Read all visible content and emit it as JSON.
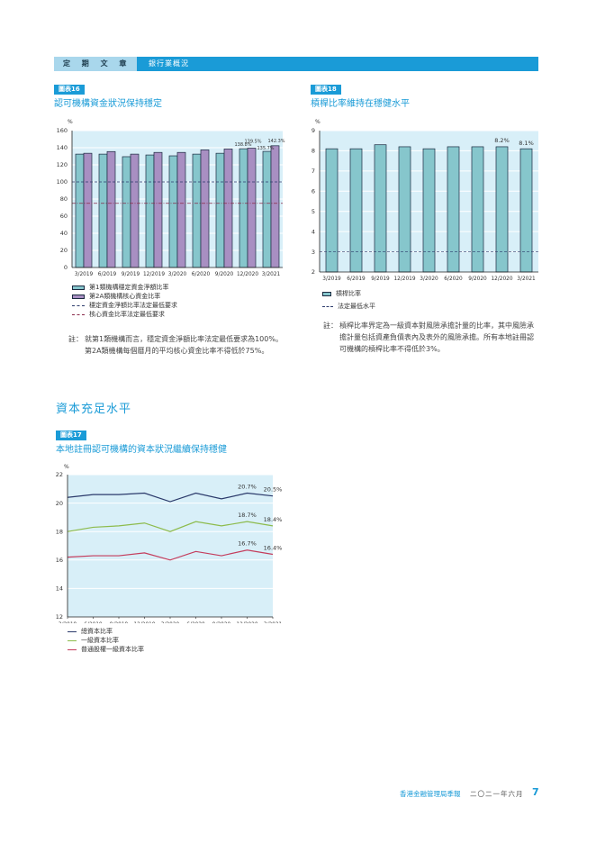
{
  "header": {
    "section": "定 期 文 章",
    "chapter": "銀行業概況"
  },
  "chart16": {
    "tag": "圖表16",
    "title": "認可機構資金狀況保持穩定",
    "unit": "%",
    "legend": [
      "第1類機構穩定資金淨額比率",
      "第2A類機構核心資金比率",
      "穩定資金淨額比率法定最低要求",
      "核心資金比率法定最低要求"
    ],
    "note_label": "註：",
    "note": "就第1類機構而言，穩定資金淨額比率法定最低要求為100%。第2A類機構每個曆月的平均核心資金比率不得低於75%。"
  },
  "chart18": {
    "tag": "圖表18",
    "title": "槓桿比率維持在穩健水平",
    "unit": "%",
    "legend": [
      "槓桿比率",
      "法定最低水平"
    ],
    "note_label": "註：",
    "note": "槓桿比率界定為一級資本對風險承擔計量的比率，其中風險承擔計量包括資產負債表內及表外的風險承擔。所有本地註冊認可機構的槓桿比率不得低於3%。"
  },
  "section": {
    "title": "資本充足水平"
  },
  "chart17": {
    "tag": "圖表17",
    "title": "本地註冊認可機構的資本狀況繼續保持穩健",
    "unit": "%",
    "legend": [
      "總資本比率",
      "一級資本比率",
      "普通股權一級資本比率"
    ]
  },
  "footer": {
    "publication": "香港金融管理局季報",
    "date": "二〇二一年六月",
    "page": "7"
  },
  "colors": {
    "brand_blue": "#1a9bd7",
    "header_light": "#a9d7ec",
    "plot_bg": "#d8eff8",
    "teal_bar": "#86c6cc",
    "purple_bar": "#a88fc2",
    "total_line": "#2b3a6b",
    "tier1_line": "#8dbb4c",
    "cet1_line": "#c43c5c"
  },
  "chart_data": [
    {
      "id": "chart16",
      "type": "bar",
      "title": "認可機構資金狀況保持穩定",
      "ylabel": "%",
      "ylim": [
        0,
        160
      ],
      "yticks": [
        0,
        20,
        40,
        60,
        80,
        100,
        120,
        140,
        160
      ],
      "categories": [
        "3/2019",
        "6/2019",
        "9/2019",
        "12/2019",
        "3/2020",
        "6/2020",
        "9/2020",
        "12/2020",
        "3/2021"
      ],
      "series": [
        {
          "name": "第1類機構穩定資金淨額比率",
          "values": [
            132.5,
            132.5,
            129.5,
            131.5,
            130.5,
            132.5,
            133.5,
            138.8,
            135.7
          ]
        },
        {
          "name": "第2A類機構核心資金比率",
          "values": [
            133.5,
            135.5,
            132.5,
            134.5,
            134.5,
            137.5,
            138.5,
            139.5,
            142.3
          ]
        }
      ],
      "reference_lines": [
        {
          "name": "穩定資金淨額比率法定最低要求",
          "value": 100,
          "style": "dashed"
        },
        {
          "name": "核心資金比率法定最低要求",
          "value": 75,
          "style": "dash-dot"
        }
      ],
      "annotations": [
        "138.8%",
        "139.5%",
        "135.7%",
        "142.3%"
      ],
      "grid": true,
      "legend_position": "bottom"
    },
    {
      "id": "chart18",
      "type": "bar",
      "title": "槓桿比率維持在穩健水平",
      "ylabel": "%",
      "ylim": [
        2,
        9
      ],
      "yticks": [
        2,
        3,
        4,
        5,
        6,
        7,
        8,
        9
      ],
      "categories": [
        "3/2019",
        "6/2019",
        "9/2019",
        "12/2019",
        "3/2020",
        "6/2020",
        "9/2020",
        "12/2020",
        "3/2021"
      ],
      "series": [
        {
          "name": "槓桿比率",
          "values": [
            8.1,
            8.1,
            8.3,
            8.2,
            8.1,
            8.2,
            8.2,
            8.2,
            8.1
          ]
        }
      ],
      "reference_lines": [
        {
          "name": "法定最低水平",
          "value": 3,
          "style": "dashed"
        }
      ],
      "annotations": [
        "8.2%",
        "8.1%"
      ],
      "grid": true,
      "legend_position": "bottom"
    },
    {
      "id": "chart17",
      "type": "line",
      "title": "本地註冊認可機構的資本狀況繼續保持穩健",
      "ylabel": "%",
      "ylim": [
        12,
        22
      ],
      "yticks": [
        12,
        14,
        16,
        18,
        20,
        22
      ],
      "categories": [
        "3/2019",
        "6/2019",
        "9/2019",
        "12/2019",
        "3/2020",
        "6/2020",
        "9/2020",
        "12/2020",
        "3/2021"
      ],
      "series": [
        {
          "name": "總資本比率",
          "values": [
            20.4,
            20.6,
            20.6,
            20.7,
            20.1,
            20.7,
            20.3,
            20.7,
            20.5
          ]
        },
        {
          "name": "一級資本比率",
          "values": [
            18.0,
            18.3,
            18.4,
            18.6,
            18.0,
            18.7,
            18.4,
            18.7,
            18.4
          ]
        },
        {
          "name": "普通股權一級資本比率",
          "values": [
            16.2,
            16.3,
            16.3,
            16.5,
            16.0,
            16.6,
            16.3,
            16.7,
            16.4
          ]
        }
      ],
      "annotations": [
        "20.7%",
        "20.5%",
        "18.7%",
        "18.4%",
        "16.7%",
        "16.4%"
      ],
      "grid": true,
      "legend_position": "bottom"
    }
  ]
}
